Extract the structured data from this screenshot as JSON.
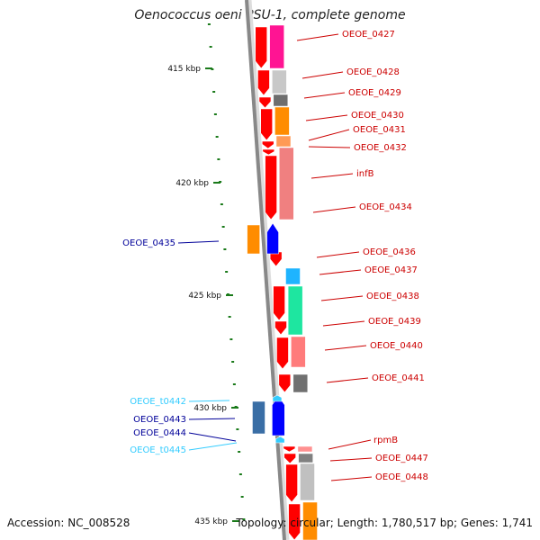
{
  "title": "Oenococcus oeni PSU-1, complete genome",
  "footer": {
    "accession": "Accession: NC_008528",
    "summary": "Topology: circular; Length: 1,780,517 bp; Genes: 1,741"
  },
  "colors": {
    "forward_label": "#cc0000",
    "reverse_label": "#000099",
    "trna_label": "#33ccff",
    "tick": "#1a7a1a",
    "backbone": "#888888"
  },
  "scale": {
    "unit": "kbp",
    "labels": [
      "415 kbp",
      "420 kbp",
      "425 kbp",
      "430 kbp",
      "435 kbp"
    ]
  },
  "genes": [
    {
      "label": "OEOE_0427",
      "strand": "forward",
      "color": "#ff1493"
    },
    {
      "label": "OEOE_0428",
      "strand": "forward",
      "color": "#c8c8c8"
    },
    {
      "label": "OEOE_0429",
      "strand": "forward",
      "color": "#6e6e6e"
    },
    {
      "label": "OEOE_0430",
      "strand": "forward",
      "color": "#ff8c00"
    },
    {
      "label": "OEOE_0431",
      "strand": "forward",
      "color": "#ff8c00"
    },
    {
      "label": "OEOE_0432",
      "strand": "forward",
      "color": "#ff8080"
    },
    {
      "label": "infB",
      "strand": "forward",
      "color": "#f08080"
    },
    {
      "label": "OEOE_0434",
      "strand": "forward",
      "color": "#f08080"
    },
    {
      "label": "OEOE_0435",
      "strand": "reverse",
      "color": "#ff8c00"
    },
    {
      "label": "OEOE_0436",
      "strand": "forward",
      "color": "#ff0000"
    },
    {
      "label": "OEOE_0437",
      "strand": "forward",
      "color": "#1eb4ff"
    },
    {
      "label": "OEOE_0438",
      "strand": "forward",
      "color": "#1ee6a0"
    },
    {
      "label": "OEOE_0439",
      "strand": "forward",
      "color": "#1ee6a0"
    },
    {
      "label": "OEOE_0440",
      "strand": "forward",
      "color": "#ff7b7b"
    },
    {
      "label": "OEOE_0441",
      "strand": "forward",
      "color": "#707070"
    },
    {
      "label": "OEOE_t0442",
      "strand": "reverse",
      "color": "#33ccff"
    },
    {
      "label": "OEOE_0443",
      "strand": "reverse",
      "color": "#3a6ea5"
    },
    {
      "label": "OEOE_0444",
      "strand": "reverse",
      "color": "#0000ff"
    },
    {
      "label": "OEOE_t0445",
      "strand": "reverse",
      "color": "#33ccff"
    },
    {
      "label": "rpmB",
      "strand": "forward",
      "color": "#ff9090"
    },
    {
      "label": "OEOE_0447",
      "strand": "forward",
      "color": "#808080"
    },
    {
      "label": "OEOE_0448",
      "strand": "forward",
      "color": "#c0c0c0"
    }
  ]
}
